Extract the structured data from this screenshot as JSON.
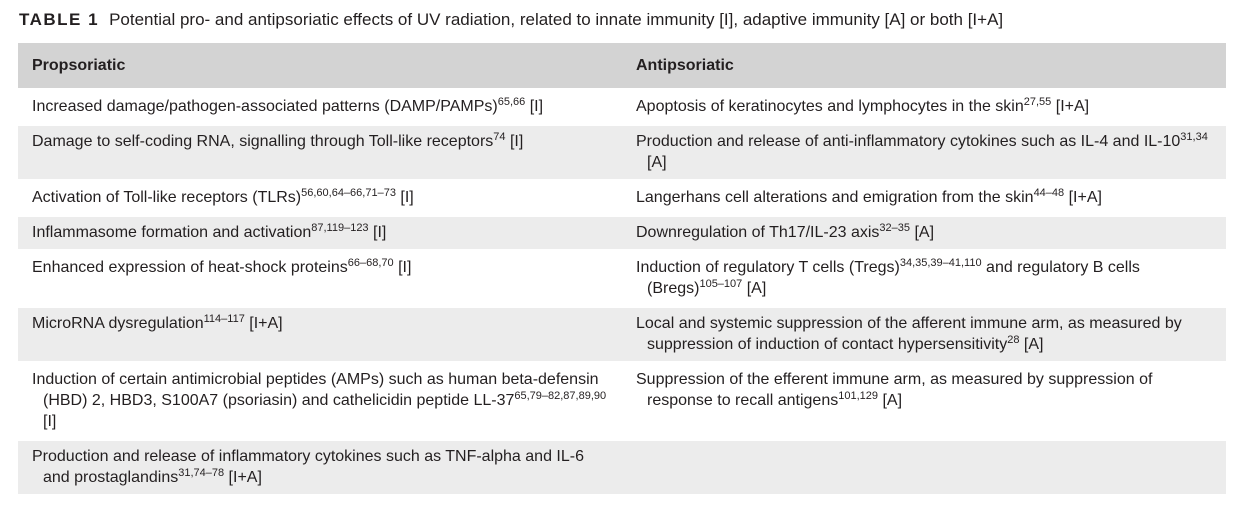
{
  "caption": {
    "label": "TABLE 1",
    "text": "Potential pro- and antipsoriatic effects of UV radiation, related to innate immunity [I], adaptive immunity [A] or both [I+A]"
  },
  "table": {
    "headers": [
      "Propsoriatic",
      "Antipsoriatic"
    ],
    "rows": [
      {
        "pro": {
          "text": "Increased damage/pathogen-associated patterns (DAMP/PAMPs)",
          "ref": "65,66",
          "tag": " [I]"
        },
        "anti": {
          "text": "Apoptosis of keratinocytes and lymphocytes in the skin",
          "ref": "27,55",
          "tag": " [I+A]"
        }
      },
      {
        "pro": {
          "text": "Damage to self-coding RNA, signalling through Toll-like receptors",
          "ref": "74",
          "tag": " [I]"
        },
        "anti": {
          "text": "Production and release of anti-inflammatory cytokines such as IL-4 and IL-10",
          "ref": "31,34",
          "tag": " [A]"
        }
      },
      {
        "pro": {
          "text": "Activation of Toll-like receptors (TLRs)",
          "ref": "56,60,64–66,71–73",
          "tag": " [I]"
        },
        "anti": {
          "text": "Langerhans cell alterations and emigration from the skin",
          "ref": "44–48",
          "tag": " [I+A]"
        }
      },
      {
        "pro": {
          "text": "Inflammasome formation and activation",
          "ref": "87,119–123",
          "tag": " [I]"
        },
        "anti": {
          "text": "Downregulation of Th17/IL-23 axis",
          "ref": "32–35",
          "tag": " [A]"
        }
      },
      {
        "pro": {
          "text": "Enhanced expression of heat-shock proteins",
          "ref": "66–68,70",
          "tag": " [I]"
        },
        "anti": {
          "text": "Induction of regulatory T cells (Tregs)",
          "ref": "34,35,39–41,110",
          "text2": " and regulatory B cells (Bregs)",
          "ref2": "105–107",
          "tag": " [A]"
        }
      },
      {
        "pro": {
          "text": "MicroRNA dysregulation",
          "ref": "114–117",
          "tag": " [I+A]"
        },
        "anti": {
          "text": "Local and systemic suppression of the afferent immune arm, as measured by suppression of induction of contact hypersensitivity",
          "ref": "28",
          "tag": " [A]"
        }
      },
      {
        "pro": {
          "text": "Induction of certain antimicrobial peptides (AMPs) such as human beta-defensin (HBD) 2, HBD3, S100A7 (psoriasin) and cathelicidin peptide LL-37",
          "ref": "65,79–82,87,89,90",
          "tag": " [I]"
        },
        "anti": {
          "text": "Suppression of the efferent immune arm, as measured by suppression of response to recall antigens",
          "ref": "101,129",
          "tag": " [A]"
        }
      },
      {
        "pro": {
          "text": "Production and release of inflammatory cytokines such as TNF-alpha and IL-6 and prostaglandins",
          "ref": "31,74–78",
          "tag": " [I+A]"
        },
        "anti": null
      }
    ]
  }
}
